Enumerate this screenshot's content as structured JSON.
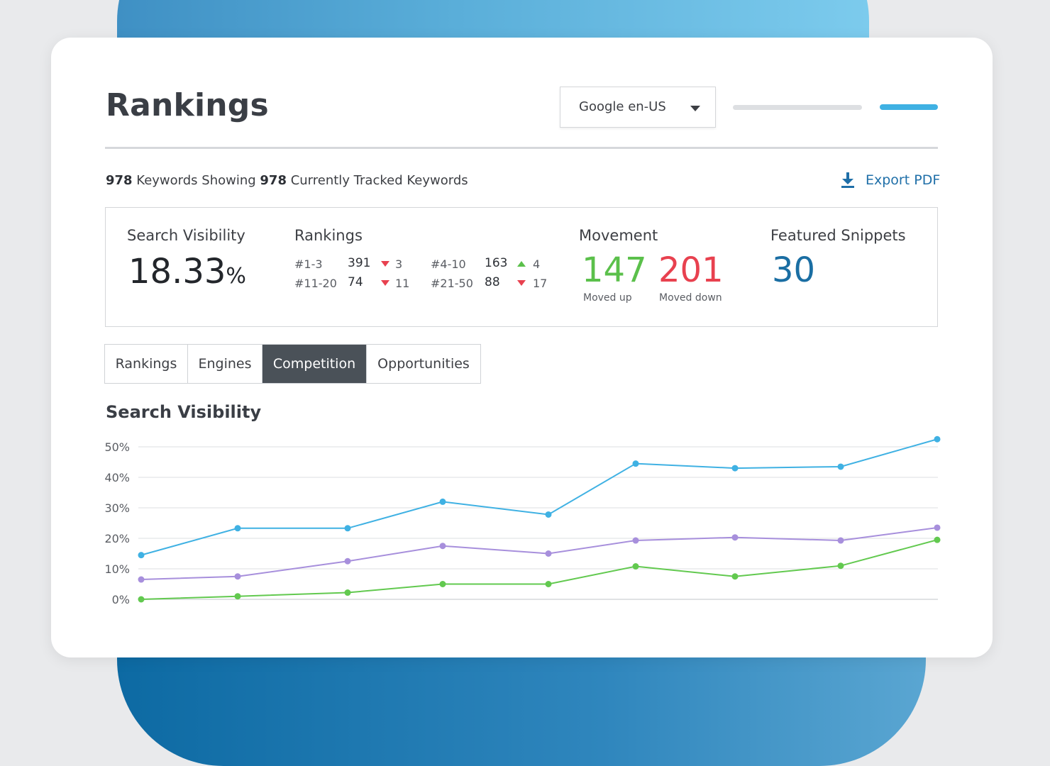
{
  "header": {
    "title": "Rankings",
    "engine_select": {
      "selected": "Google en-US"
    }
  },
  "summary": {
    "showing_count": "978",
    "showing_text": " Keywords Showing ",
    "tracked_count": "978",
    "tracked_text": " Currently Tracked Keywords",
    "export_label": "Export PDF"
  },
  "stats": {
    "search_visibility": {
      "label": "Search Visibility",
      "value": "18.33",
      "unit": "%"
    },
    "rankings": {
      "label": "Rankings",
      "rows": [
        {
          "range": "#1-3",
          "count": "391",
          "direction": "down",
          "delta": "3"
        },
        {
          "range": "#4-10",
          "count": "163",
          "direction": "up",
          "delta": "4"
        },
        {
          "range": "#11-20",
          "count": "74",
          "direction": "down",
          "delta": "11"
        },
        {
          "range": "#21-50",
          "count": "88",
          "direction": "down",
          "delta": "17"
        }
      ]
    },
    "movement": {
      "label": "Movement",
      "up_value": "147",
      "up_label": "Moved up",
      "down_value": "201",
      "down_label": "Moved down"
    },
    "featured_snippets": {
      "label": "Featured Snippets",
      "value": "30"
    }
  },
  "tabs": [
    {
      "label": "Rankings",
      "active": false
    },
    {
      "label": "Engines",
      "active": false
    },
    {
      "label": "Competition",
      "active": true
    },
    {
      "label": "Opportunities",
      "active": false
    }
  ],
  "colors": {
    "up": "#5bc04b",
    "down": "#e8414f",
    "snippets": "#1a6ea3",
    "series_blue": "#3fb1e3",
    "series_purple": "#a78fdc",
    "series_green": "#62c94f"
  },
  "icons": {
    "export": "download-icon",
    "dropdown": "caret-down-icon"
  },
  "chart_data": {
    "type": "line",
    "title": "Search Visibility",
    "xlabel": "",
    "ylabel": "",
    "ylim": [
      0,
      50
    ],
    "yticks": [
      "50%",
      "40%",
      "30%",
      "20%",
      "10%",
      "0%"
    ],
    "ytick_values": [
      50,
      40,
      30,
      20,
      10,
      0
    ],
    "grid": true,
    "legend": false,
    "x": [
      1,
      2,
      3,
      4,
      5,
      6,
      7,
      8,
      9
    ],
    "series": [
      {
        "color": "#3fb1e3",
        "values": [
          14.5,
          23.3,
          23.3,
          32.0,
          27.8,
          44.5,
          43.0,
          43.5,
          52.5
        ]
      },
      {
        "color": "#a78fdc",
        "values": [
          6.5,
          7.5,
          12.5,
          17.5,
          15.0,
          19.3,
          20.3,
          19.3,
          23.5
        ]
      },
      {
        "color": "#62c94f",
        "values": [
          0.0,
          1.0,
          2.2,
          5.0,
          5.0,
          10.8,
          7.5,
          11.0,
          19.5
        ]
      }
    ]
  }
}
